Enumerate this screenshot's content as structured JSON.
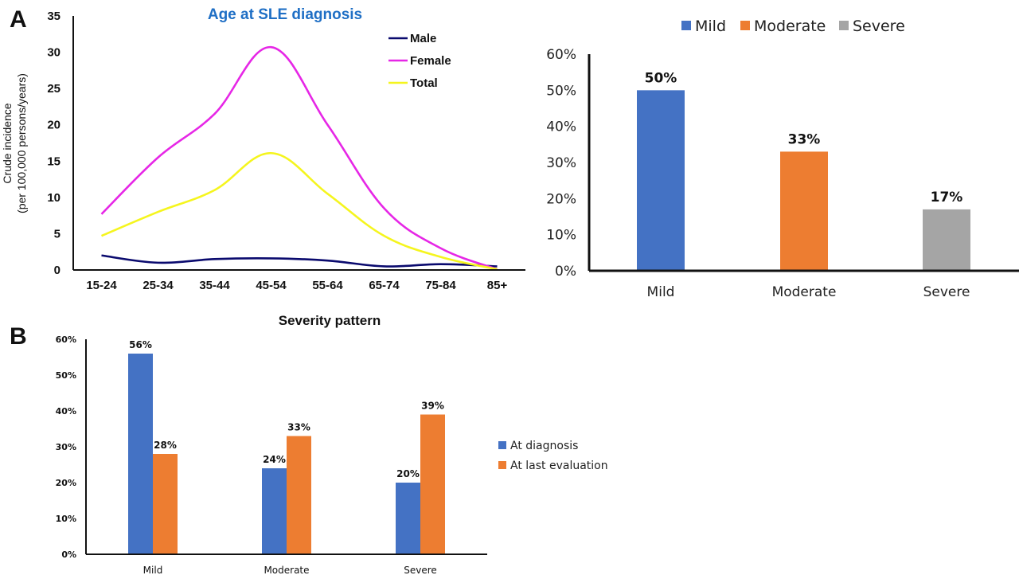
{
  "panels": {
    "a_letter": "A",
    "b_letter": "B"
  },
  "chart_data": [
    {
      "type": "line",
      "title": "Age at SLE diagnosis",
      "title_color": "#1f6fc5",
      "ylabel_line1": "Crude incidence",
      "ylabel_line2": "(per 100,000 persons/years)",
      "xlabel": "",
      "categories": [
        "15-24",
        "25-34",
        "35-44",
        "45-54",
        "55-64",
        "65-74",
        "75-84",
        "85+"
      ],
      "y_ticks": [
        "0",
        "5",
        "10",
        "15",
        "20",
        "25",
        "30",
        "35"
      ],
      "ylim": [
        0,
        35
      ],
      "legend_position": "top-right",
      "series": [
        {
          "name": "Male",
          "color": "#0a0a6e",
          "values": [
            2.0,
            1.0,
            1.5,
            1.6,
            1.3,
            0.5,
            0.8,
            0.5
          ]
        },
        {
          "name": "Female",
          "color": "#e627e6",
          "values": [
            7.7,
            15.5,
            21.5,
            30.7,
            20.0,
            8.5,
            3.0,
            0.1
          ]
        },
        {
          "name": "Total",
          "color": "#f5f51e",
          "values": [
            4.7,
            8.0,
            11.0,
            16.1,
            10.5,
            4.7,
            1.8,
            0.1
          ]
        }
      ]
    },
    {
      "type": "bar",
      "categories": [
        "Mild",
        "Moderate",
        "Severe"
      ],
      "values": [
        50,
        33,
        17
      ],
      "labels": [
        "50%",
        "33%",
        "17%"
      ],
      "colors": [
        "#4472c4",
        "#ed7d31",
        "#a5a5a5"
      ],
      "y_ticks": [
        "0%",
        "10%",
        "20%",
        "30%",
        "40%",
        "50%",
        "60%"
      ],
      "ylim": [
        0,
        60
      ],
      "legend": [
        "Mild",
        "Moderate",
        "Severe"
      ],
      "legend_position": "top"
    },
    {
      "type": "bar",
      "title": "Severity pattern",
      "categories": [
        "Mild",
        "Moderate",
        "Severe"
      ],
      "y_ticks": [
        "0%",
        "10%",
        "20%",
        "30%",
        "40%",
        "50%",
        "60%"
      ],
      "ylim": [
        0,
        60
      ],
      "legend_position": "right",
      "series": [
        {
          "name": "At diagnosis",
          "color": "#4472c4",
          "values": [
            56,
            24,
            20
          ],
          "labels": [
            "56%",
            "24%",
            "20%"
          ]
        },
        {
          "name": "At last evaluation",
          "color": "#ed7d31",
          "values": [
            28,
            33,
            39
          ],
          "labels": [
            "28%",
            "33%",
            "39%"
          ]
        }
      ]
    }
  ]
}
